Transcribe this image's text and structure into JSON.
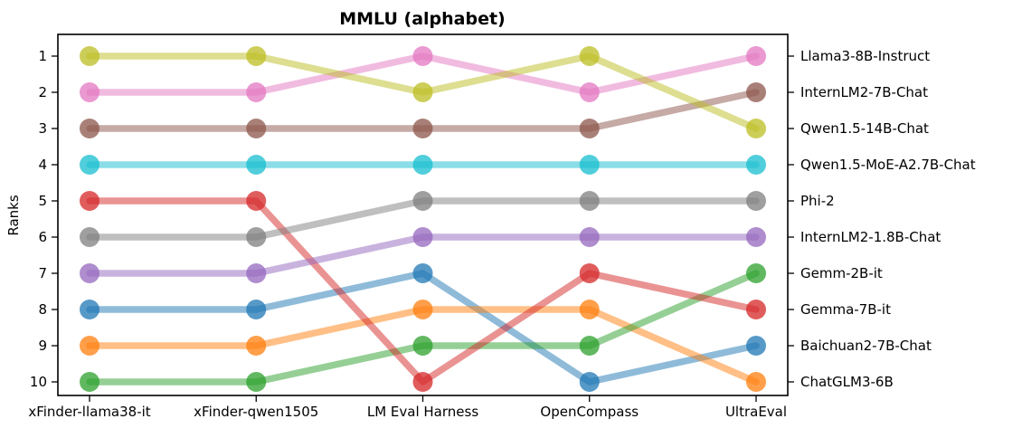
{
  "title": "MMLU (alphabet)",
  "ylabel": "Ranks",
  "chart_data": {
    "type": "line",
    "subtype": "bump-rank-chart",
    "title": "MMLU (alphabet)",
    "ylabel": "Ranks",
    "grid": false,
    "y_axis_inverted_ranks": true,
    "y_ticks": [
      "1",
      "2",
      "3",
      "4",
      "5",
      "6",
      "7",
      "8",
      "9",
      "10"
    ],
    "categories": [
      "xFinder-llama38-it",
      "xFinder-qwen1505",
      "LM Eval Harness",
      "OpenCompass",
      "UltraEval"
    ],
    "series": [
      {
        "name": "Baichuan2-7B-Chat",
        "color": "#1f77b4",
        "ranks": [
          8,
          8,
          7,
          10,
          9
        ]
      },
      {
        "name": "ChatGLM3-6B",
        "color": "#ff7f0e",
        "ranks": [
          9,
          9,
          8,
          8,
          10
        ]
      },
      {
        "name": "Gemm-2B-it",
        "color": "#2ca02c",
        "ranks": [
          10,
          10,
          9,
          9,
          7
        ]
      },
      {
        "name": "Gemma-7B-it",
        "color": "#d62728",
        "ranks": [
          5,
          5,
          10,
          7,
          8
        ]
      },
      {
        "name": "InternLM2-1.8B-Chat",
        "color": "#9467bd",
        "ranks": [
          7,
          7,
          6,
          6,
          6
        ]
      },
      {
        "name": "InternLM2-7B-Chat",
        "color": "#8c564b",
        "ranks": [
          3,
          3,
          3,
          3,
          2
        ]
      },
      {
        "name": "Llama3-8B-Instruct",
        "color": "#e377c2",
        "ranks": [
          2,
          2,
          1,
          2,
          1
        ]
      },
      {
        "name": "Phi-2",
        "color": "#7f7f7f",
        "ranks": [
          6,
          6,
          5,
          5,
          5
        ]
      },
      {
        "name": "Qwen1.5-14B-Chat",
        "color": "#bcbd22",
        "ranks": [
          1,
          1,
          2,
          1,
          3
        ]
      },
      {
        "name": "Qwen1.5-MoE-A2.7B-Chat",
        "color": "#17becf",
        "ranks": [
          4,
          4,
          4,
          4,
          4
        ]
      }
    ],
    "right_labels_top_to_bottom": [
      "Llama3-8B-Instruct",
      "InternLM2-7B-Chat",
      "Qwen1.5-14B-Chat",
      "Qwen1.5-MoE-A2.7B-Chat",
      "Phi-2",
      "InternLM2-1.8B-Chat",
      "Gemm-2B-it",
      "Gemma-7B-it",
      "Baichuan2-7B-Chat",
      "ChatGLM3-6B"
    ],
    "axis_color": "#000000",
    "line_opacity": 0.5,
    "marker_opacity": 0.75
  }
}
